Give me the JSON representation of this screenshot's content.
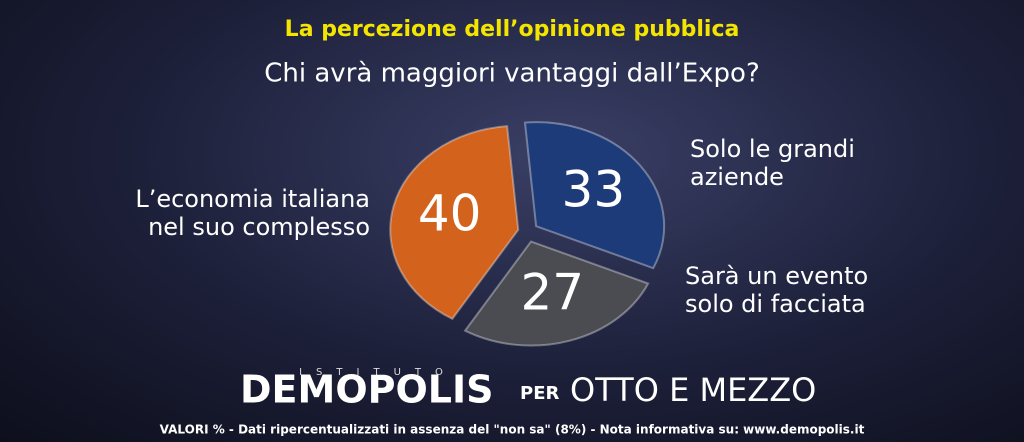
{
  "chart_data": {
    "type": "pie",
    "title": "La percezione dell’opinione pubblica",
    "subtitle": "Chi avrà maggiori vantaggi dall’Expo?",
    "categories": [
      "Solo le grandi aziende",
      "Sarà un evento solo di facciata",
      "L’economia italiana nel suo complesso"
    ],
    "values": [
      33,
      27,
      40
    ],
    "colors": [
      "#1d3b78",
      "#4a4c52",
      "#d2621c"
    ]
  },
  "footer": {
    "istituto": "ISTITUTO",
    "brand": "DEMOPOLIS",
    "per": "PER",
    "partner": "OTTO E MEZZO",
    "note": "VALORI % - Dati ripercentualizzati in assenza del \"non sa\" (8%) - Nota informativa su: www.demopolis.it"
  }
}
